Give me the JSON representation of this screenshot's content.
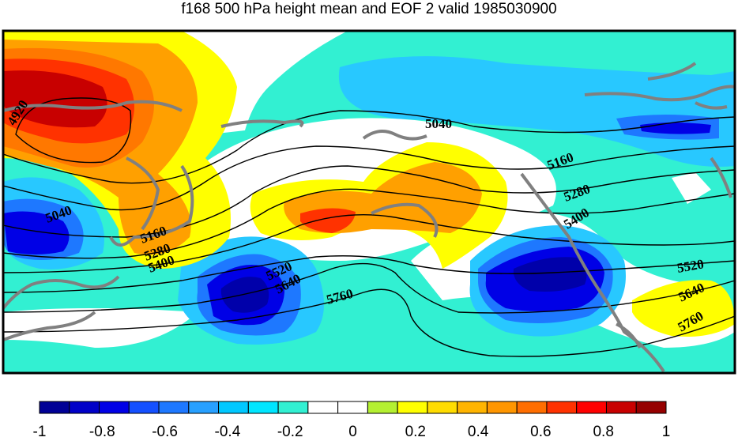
{
  "title": "f168 500 hPa height mean and EOF 2 valid 1985030900",
  "colorbar": {
    "colors": [
      "#000096",
      "#0000c8",
      "#0000e6",
      "#1450ff",
      "#1e78ff",
      "#28a0ff",
      "#00c8ff",
      "#00e6ff",
      "#32f0d2",
      "#ffffff",
      "#ffffff",
      "#b4f032",
      "#ffff00",
      "#ffdc00",
      "#ffb400",
      "#ff9600",
      "#ff6e00",
      "#ff3200",
      "#ff0000",
      "#c80000",
      "#960000"
    ],
    "labels": [
      "-1",
      "-0.8",
      "-0.6",
      "-0.4",
      "-0.2",
      "0",
      "0.2",
      "0.4",
      "0.6",
      "0.8",
      "1"
    ]
  },
  "contour_labels": [
    "4920",
    "5040",
    "5040",
    "5160",
    "5160",
    "5280",
    "5280",
    "5400",
    "5400",
    "5520",
    "5520",
    "5640",
    "5640",
    "5760",
    "5760"
  ],
  "palette": {
    "teal": "#32f0d2",
    "lightblue": "#28c8ff",
    "midblue": "#1e78ff",
    "blue": "#0000e6",
    "darkblue": "#0000aa",
    "yellow": "#ffff00",
    "orange": "#ffa000",
    "darkorange": "#ff7800",
    "red": "#ff3200",
    "darkred": "#c80000",
    "land": "#808080"
  }
}
